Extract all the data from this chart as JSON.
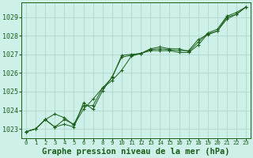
{
  "title": "Graphe pression niveau de la mer (hPa)",
  "background_color": "#cdf0e8",
  "grid_color": "#b0d8c8",
  "line_color": "#1a5e1a",
  "marker_color": "#1a5e1a",
  "xlim": [
    -0.5,
    23.5
  ],
  "ylim": [
    1022.5,
    1029.8
  ],
  "yticks": [
    1023,
    1024,
    1025,
    1026,
    1027,
    1028,
    1029
  ],
  "xticks": [
    0,
    1,
    2,
    3,
    4,
    5,
    6,
    7,
    8,
    9,
    10,
    11,
    12,
    13,
    14,
    15,
    16,
    17,
    18,
    19,
    20,
    21,
    22,
    23
  ],
  "series": [
    [
      1022.85,
      1023.0,
      1023.5,
      1023.1,
      1023.25,
      1023.1,
      1024.4,
      1024.05,
      1025.05,
      1025.8,
      1026.85,
      1026.95,
      1027.05,
      1027.2,
      1027.2,
      1027.2,
      1027.1,
      1027.1,
      1027.5,
      1028.1,
      1028.25,
      1029.0,
      1029.15,
      1029.55
    ],
    [
      1022.85,
      1023.0,
      1023.5,
      1023.8,
      1023.6,
      1023.2,
      1024.05,
      1024.6,
      1025.2,
      1025.75,
      1026.95,
      1027.0,
      1027.05,
      1027.25,
      1027.3,
      1027.25,
      1027.2,
      1027.2,
      1027.8,
      1028.05,
      1028.25,
      1028.9,
      1029.15,
      1029.55
    ],
    [
      1022.85,
      1023.0,
      1023.5,
      1023.1,
      1023.5,
      1023.25,
      1024.25,
      1024.25,
      1025.2,
      1025.6,
      1026.15,
      1026.9,
      1027.05,
      1027.3,
      1027.4,
      1027.3,
      1027.3,
      1027.15,
      1027.65,
      1028.15,
      1028.35,
      1029.05,
      1029.25,
      1029.55
    ]
  ],
  "xtick_fontsize": 5.2,
  "ytick_fontsize": 6.0,
  "xlabel_fontsize": 7.5
}
